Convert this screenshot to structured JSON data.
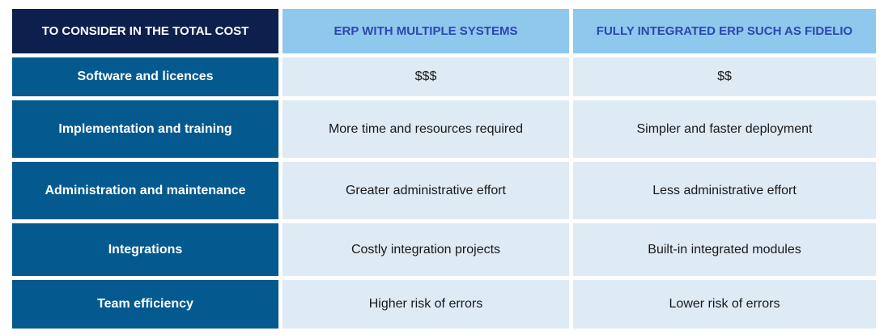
{
  "table": {
    "corner_label": "TO CONSIDER IN THE TOTAL COST",
    "columns": [
      "ERP WITH MULTIPLE SYSTEMS",
      "FULLY INTEGRATED ERP SUCH AS FIDELIO"
    ],
    "rows": [
      {
        "label": "Software and licences",
        "multiple": "$$$",
        "integrated": "$$"
      },
      {
        "label": "Implementation and training",
        "multiple": "More time and resources required",
        "integrated": "Simpler and faster deployment"
      },
      {
        "label": "Administration and maintenance",
        "multiple": "Greater administrative effort",
        "integrated": "Less administrative effort"
      },
      {
        "label": "Integrations",
        "multiple": "Costly integration projects",
        "integrated": "Built-in integrated modules"
      },
      {
        "label": "Team efficiency",
        "multiple": "Higher risk of errors",
        "integrated": "Lower risk of errors"
      }
    ],
    "colors": {
      "corner_bg": "#0d1f4d",
      "column_header_bg": "#8ec8ec",
      "column_header_text": "#2c47b0",
      "row_header_bg": "#045a8f",
      "value_bg": "#deeaf4"
    }
  }
}
